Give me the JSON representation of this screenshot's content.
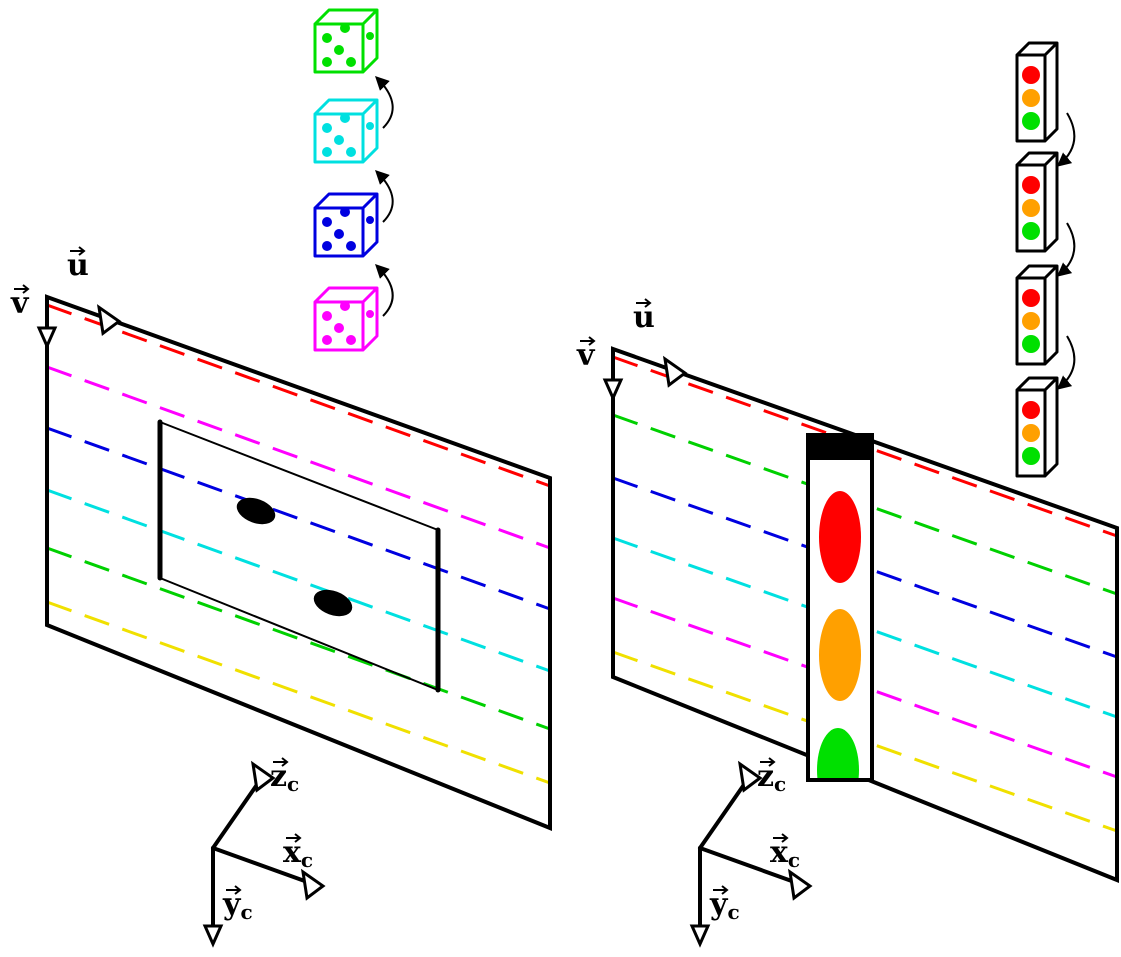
{
  "left": {
    "u": "u",
    "v": "v",
    "axes": [
      {
        "letter": "z",
        "sub": "c"
      },
      {
        "letter": "x",
        "sub": "c"
      },
      {
        "letter": "y",
        "sub": "c"
      }
    ]
  },
  "right": {
    "u": "u",
    "v": "v",
    "axes": [
      {
        "letter": "z",
        "sub": "c"
      },
      {
        "letter": "x",
        "sub": "c"
      },
      {
        "letter": "y",
        "sub": "c"
      }
    ]
  }
}
